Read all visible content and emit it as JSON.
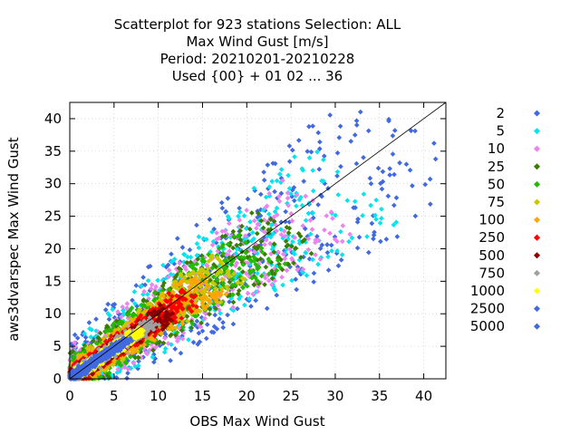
{
  "chart_data": {
    "type": "scatter",
    "title_lines": [
      "Scatterplot for  923 stations Selection: ALL",
      "Max Wind Gust [m/s]",
      "Period: 20210201-20210228",
      "Used {00} + 01 02 ... 36"
    ],
    "xlabel": "OBS Max Wind Gust",
    "ylabel": "aws3dvarspec Max Wind Gust",
    "xlim": [
      0,
      42.5
    ],
    "ylim": [
      0,
      42.5
    ],
    "xticks": [
      0,
      5,
      10,
      15,
      20,
      25,
      30,
      35,
      40
    ],
    "yticks": [
      0,
      5,
      10,
      15,
      20,
      25,
      30,
      35,
      40
    ],
    "grid": true,
    "legend_position": "right",
    "diagonal_line": true,
    "density_classes": [
      {
        "label": "2",
        "color": "#4169e1",
        "spread": 10.0
      },
      {
        "label": "5",
        "color": "#00e5ee",
        "spread": 8.0
      },
      {
        "label": "10",
        "color": "#ee82ee",
        "spread": 6.8
      },
      {
        "label": "25",
        "color": "#3a7d00",
        "spread": 5.8
      },
      {
        "label": "50",
        "color": "#22bb00",
        "spread": 4.9
      },
      {
        "label": "75",
        "color": "#c8c800",
        "spread": 4.0
      },
      {
        "label": "100",
        "color": "#ffa500",
        "spread": 3.4
      },
      {
        "label": "250",
        "color": "#ff0000",
        "spread": 2.7
      },
      {
        "label": "500",
        "color": "#8b0000",
        "spread": 2.0
      },
      {
        "label": "750",
        "color": "#a0a0a0",
        "spread": 1.5
      },
      {
        "label": "1000",
        "color": "#ffff00",
        "spread": 1.1
      },
      {
        "label": "2500",
        "color": "#4169e1",
        "spread": 0.7
      },
      {
        "label": "5000",
        "color": "#4169e1",
        "spread": 0.4
      }
    ]
  }
}
